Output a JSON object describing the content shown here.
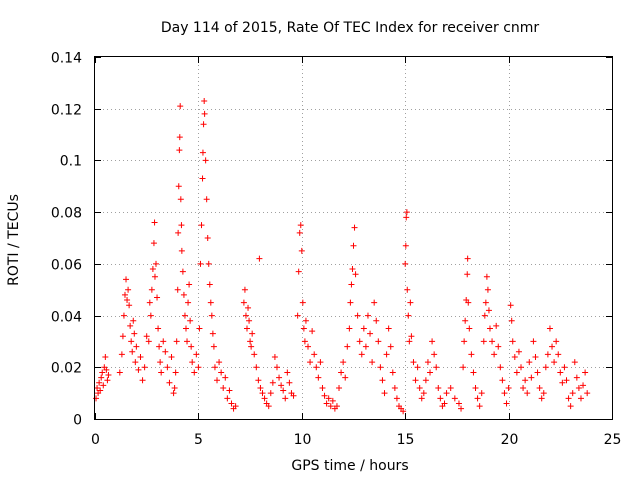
{
  "chart_data": {
    "type": "scatter",
    "title": "Day 114 of 2015, Rate Of TEC Index for receiver cnmr",
    "xlabel": "GPS time / hours",
    "ylabel": "ROTI / TECUs",
    "xlim": [
      0,
      25
    ],
    "ylim": [
      0,
      0.14
    ],
    "xticks": [
      0,
      5,
      10,
      15,
      20,
      25
    ],
    "yticks": [
      0,
      0.02,
      0.04,
      0.06,
      0.08,
      0.1,
      0.12,
      0.14
    ],
    "ytick_labels": [
      "0",
      "0.02",
      "0.04",
      "0.06",
      "0.08",
      "0.1",
      "0.12",
      "0.14"
    ],
    "grid": true,
    "marker": "+",
    "color": "#ff0000",
    "series": [
      {
        "name": "ROTI",
        "points": [
          [
            0.05,
            0.008
          ],
          [
            0.1,
            0.012
          ],
          [
            0.15,
            0.01
          ],
          [
            0.2,
            0.014
          ],
          [
            0.25,
            0.011
          ],
          [
            0.3,
            0.016
          ],
          [
            0.35,
            0.018
          ],
          [
            0.4,
            0.013
          ],
          [
            0.45,
            0.02
          ],
          [
            0.5,
            0.024
          ],
          [
            0.55,
            0.019
          ],
          [
            0.6,
            0.015
          ],
          [
            0.65,
            0.017
          ],
          [
            1.2,
            0.018
          ],
          [
            1.3,
            0.025
          ],
          [
            1.35,
            0.032
          ],
          [
            1.4,
            0.04
          ],
          [
            1.45,
            0.048
          ],
          [
            1.5,
            0.054
          ],
          [
            1.55,
            0.046
          ],
          [
            1.6,
            0.05
          ],
          [
            1.65,
            0.044
          ],
          [
            1.7,
            0.036
          ],
          [
            1.75,
            0.03
          ],
          [
            1.8,
            0.026
          ],
          [
            1.85,
            0.038
          ],
          [
            1.9,
            0.033
          ],
          [
            1.95,
            0.022
          ],
          [
            2.0,
            0.028
          ],
          [
            2.1,
            0.019
          ],
          [
            2.2,
            0.024
          ],
          [
            2.3,
            0.015
          ],
          [
            2.4,
            0.02
          ],
          [
            2.5,
            0.032
          ],
          [
            2.6,
            0.03
          ],
          [
            2.65,
            0.045
          ],
          [
            2.7,
            0.04
          ],
          [
            2.75,
            0.05
          ],
          [
            2.8,
            0.058
          ],
          [
            2.85,
            0.068
          ],
          [
            2.88,
            0.076
          ],
          [
            2.9,
            0.055
          ],
          [
            2.95,
            0.06
          ],
          [
            3.0,
            0.047
          ],
          [
            3.05,
            0.035
          ],
          [
            3.1,
            0.028
          ],
          [
            3.15,
            0.022
          ],
          [
            3.2,
            0.018
          ],
          [
            3.3,
            0.03
          ],
          [
            3.4,
            0.026
          ],
          [
            3.5,
            0.02
          ],
          [
            3.6,
            0.014
          ],
          [
            3.7,
            0.024
          ],
          [
            3.8,
            0.01
          ],
          [
            3.85,
            0.012
          ],
          [
            3.9,
            0.018
          ],
          [
            3.95,
            0.03
          ],
          [
            4.0,
            0.05
          ],
          [
            4.02,
            0.072
          ],
          [
            4.05,
            0.09
          ],
          [
            4.08,
            0.104
          ],
          [
            4.1,
            0.109
          ],
          [
            4.12,
            0.121
          ],
          [
            4.15,
            0.085
          ],
          [
            4.18,
            0.075
          ],
          [
            4.2,
            0.065
          ],
          [
            4.25,
            0.057
          ],
          [
            4.3,
            0.048
          ],
          [
            4.35,
            0.04
          ],
          [
            4.4,
            0.035
          ],
          [
            4.45,
            0.03
          ],
          [
            4.5,
            0.045
          ],
          [
            4.55,
            0.052
          ],
          [
            4.6,
            0.038
          ],
          [
            4.65,
            0.028
          ],
          [
            4.7,
            0.022
          ],
          [
            4.8,
            0.018
          ],
          [
            4.9,
            0.025
          ],
          [
            5.0,
            0.02
          ],
          [
            5.05,
            0.035
          ],
          [
            5.1,
            0.06
          ],
          [
            5.15,
            0.075
          ],
          [
            5.2,
            0.093
          ],
          [
            5.22,
            0.103
          ],
          [
            5.25,
            0.114
          ],
          [
            5.28,
            0.123
          ],
          [
            5.3,
            0.118
          ],
          [
            5.35,
            0.1
          ],
          [
            5.4,
            0.085
          ],
          [
            5.45,
            0.07
          ],
          [
            5.5,
            0.06
          ],
          [
            5.55,
            0.052
          ],
          [
            5.6,
            0.045
          ],
          [
            5.65,
            0.04
          ],
          [
            5.7,
            0.033
          ],
          [
            5.75,
            0.028
          ],
          [
            5.8,
            0.02
          ],
          [
            5.9,
            0.015
          ],
          [
            6.0,
            0.022
          ],
          [
            6.1,
            0.018
          ],
          [
            6.2,
            0.012
          ],
          [
            6.3,
            0.016
          ],
          [
            6.4,
            0.008
          ],
          [
            6.5,
            0.011
          ],
          [
            6.6,
            0.006
          ],
          [
            6.7,
            0.004
          ],
          [
            6.8,
            0.005
          ],
          [
            7.2,
            0.045
          ],
          [
            7.25,
            0.05
          ],
          [
            7.3,
            0.04
          ],
          [
            7.35,
            0.035
          ],
          [
            7.4,
            0.043
          ],
          [
            7.45,
            0.038
          ],
          [
            7.5,
            0.03
          ],
          [
            7.55,
            0.028
          ],
          [
            7.6,
            0.033
          ],
          [
            7.7,
            0.025
          ],
          [
            7.8,
            0.02
          ],
          [
            7.9,
            0.015
          ],
          [
            7.95,
            0.062
          ],
          [
            8.0,
            0.012
          ],
          [
            8.1,
            0.01
          ],
          [
            8.2,
            0.008
          ],
          [
            8.3,
            0.006
          ],
          [
            8.4,
            0.005
          ],
          [
            8.5,
            0.01
          ],
          [
            8.6,
            0.014
          ],
          [
            8.7,
            0.024
          ],
          [
            8.8,
            0.02
          ],
          [
            8.9,
            0.016
          ],
          [
            9.0,
            0.013
          ],
          [
            9.1,
            0.011
          ],
          [
            9.2,
            0.008
          ],
          [
            9.3,
            0.018
          ],
          [
            9.4,
            0.014
          ],
          [
            9.5,
            0.01
          ],
          [
            9.6,
            0.009
          ],
          [
            9.8,
            0.04
          ],
          [
            9.85,
            0.057
          ],
          [
            9.9,
            0.072
          ],
          [
            9.95,
            0.075
          ],
          [
            10.0,
            0.065
          ],
          [
            10.05,
            0.045
          ],
          [
            10.1,
            0.035
          ],
          [
            10.15,
            0.03
          ],
          [
            10.2,
            0.038
          ],
          [
            10.3,
            0.028
          ],
          [
            10.4,
            0.022
          ],
          [
            10.5,
            0.034
          ],
          [
            10.6,
            0.025
          ],
          [
            10.7,
            0.02
          ],
          [
            10.8,
            0.016
          ],
          [
            10.9,
            0.022
          ],
          [
            11.0,
            0.012
          ],
          [
            11.1,
            0.009
          ],
          [
            11.2,
            0.006
          ],
          [
            11.3,
            0.008
          ],
          [
            11.4,
            0.005
          ],
          [
            11.5,
            0.007
          ],
          [
            11.6,
            0.004
          ],
          [
            11.7,
            0.005
          ],
          [
            11.8,
            0.012
          ],
          [
            11.9,
            0.018
          ],
          [
            12.0,
            0.022
          ],
          [
            12.1,
            0.016
          ],
          [
            12.2,
            0.028
          ],
          [
            12.3,
            0.035
          ],
          [
            12.35,
            0.045
          ],
          [
            12.4,
            0.052
          ],
          [
            12.45,
            0.058
          ],
          [
            12.5,
            0.067
          ],
          [
            12.55,
            0.074
          ],
          [
            12.6,
            0.056
          ],
          [
            12.7,
            0.04
          ],
          [
            12.8,
            0.03
          ],
          [
            12.9,
            0.025
          ],
          [
            13.0,
            0.035
          ],
          [
            13.1,
            0.028
          ],
          [
            13.2,
            0.04
          ],
          [
            13.3,
            0.033
          ],
          [
            13.4,
            0.022
          ],
          [
            13.5,
            0.045
          ],
          [
            13.6,
            0.038
          ],
          [
            13.7,
            0.03
          ],
          [
            13.8,
            0.02
          ],
          [
            13.9,
            0.015
          ],
          [
            14.0,
            0.01
          ],
          [
            14.1,
            0.025
          ],
          [
            14.2,
            0.035
          ],
          [
            14.3,
            0.028
          ],
          [
            14.4,
            0.018
          ],
          [
            14.5,
            0.012
          ],
          [
            14.6,
            0.008
          ],
          [
            14.7,
            0.005
          ],
          [
            14.8,
            0.004
          ],
          [
            14.9,
            0.003
          ],
          [
            15.0,
            0.06
          ],
          [
            15.03,
            0.067
          ],
          [
            15.05,
            0.078
          ],
          [
            15.08,
            0.08
          ],
          [
            15.1,
            0.05
          ],
          [
            15.15,
            0.04
          ],
          [
            15.2,
            0.03
          ],
          [
            15.25,
            0.045
          ],
          [
            15.3,
            0.032
          ],
          [
            15.4,
            0.022
          ],
          [
            15.5,
            0.015
          ],
          [
            15.6,
            0.02
          ],
          [
            15.7,
            0.012
          ],
          [
            15.8,
            0.008
          ],
          [
            15.9,
            0.01
          ],
          [
            16.0,
            0.015
          ],
          [
            16.1,
            0.022
          ],
          [
            16.2,
            0.018
          ],
          [
            16.3,
            0.03
          ],
          [
            16.4,
            0.025
          ],
          [
            16.5,
            0.02
          ],
          [
            16.6,
            0.012
          ],
          [
            16.7,
            0.008
          ],
          [
            16.8,
            0.005
          ],
          [
            16.9,
            0.006
          ],
          [
            17.0,
            0.01
          ],
          [
            17.2,
            0.012
          ],
          [
            17.4,
            0.008
          ],
          [
            17.6,
            0.006
          ],
          [
            17.7,
            0.004
          ],
          [
            17.8,
            0.02
          ],
          [
            17.85,
            0.03
          ],
          [
            17.9,
            0.038
          ],
          [
            17.95,
            0.046
          ],
          [
            18.0,
            0.056
          ],
          [
            18.02,
            0.062
          ],
          [
            18.05,
            0.045
          ],
          [
            18.1,
            0.035
          ],
          [
            18.2,
            0.025
          ],
          [
            18.3,
            0.018
          ],
          [
            18.4,
            0.012
          ],
          [
            18.5,
            0.008
          ],
          [
            18.6,
            0.005
          ],
          [
            18.7,
            0.01
          ],
          [
            18.8,
            0.03
          ],
          [
            18.85,
            0.04
          ],
          [
            18.9,
            0.045
          ],
          [
            18.95,
            0.055
          ],
          [
            19.0,
            0.05
          ],
          [
            19.05,
            0.042
          ],
          [
            19.1,
            0.035
          ],
          [
            19.2,
            0.03
          ],
          [
            19.3,
            0.025
          ],
          [
            19.4,
            0.036
          ],
          [
            19.5,
            0.028
          ],
          [
            19.6,
            0.02
          ],
          [
            19.7,
            0.015
          ],
          [
            19.8,
            0.01
          ],
          [
            19.9,
            0.006
          ],
          [
            20.0,
            0.012
          ],
          [
            20.1,
            0.044
          ],
          [
            20.15,
            0.038
          ],
          [
            20.2,
            0.03
          ],
          [
            20.3,
            0.024
          ],
          [
            20.4,
            0.018
          ],
          [
            20.5,
            0.026
          ],
          [
            20.6,
            0.02
          ],
          [
            20.7,
            0.012
          ],
          [
            20.8,
            0.015
          ],
          [
            20.9,
            0.01
          ],
          [
            21.0,
            0.022
          ],
          [
            21.1,
            0.016
          ],
          [
            21.2,
            0.03
          ],
          [
            21.3,
            0.024
          ],
          [
            21.4,
            0.018
          ],
          [
            21.5,
            0.012
          ],
          [
            21.6,
            0.008
          ],
          [
            21.7,
            0.01
          ],
          [
            21.8,
            0.02
          ],
          [
            21.9,
            0.025
          ],
          [
            22.0,
            0.035
          ],
          [
            22.1,
            0.028
          ],
          [
            22.2,
            0.022
          ],
          [
            22.3,
            0.03
          ],
          [
            22.4,
            0.025
          ],
          [
            22.5,
            0.018
          ],
          [
            22.6,
            0.014
          ],
          [
            22.7,
            0.02
          ],
          [
            22.8,
            0.015
          ],
          [
            22.9,
            0.008
          ],
          [
            23.0,
            0.005
          ],
          [
            23.1,
            0.01
          ],
          [
            23.2,
            0.022
          ],
          [
            23.3,
            0.016
          ],
          [
            23.4,
            0.012
          ],
          [
            23.5,
            0.008
          ],
          [
            23.6,
            0.013
          ],
          [
            23.7,
            0.018
          ],
          [
            23.8,
            0.01
          ]
        ]
      }
    ]
  }
}
